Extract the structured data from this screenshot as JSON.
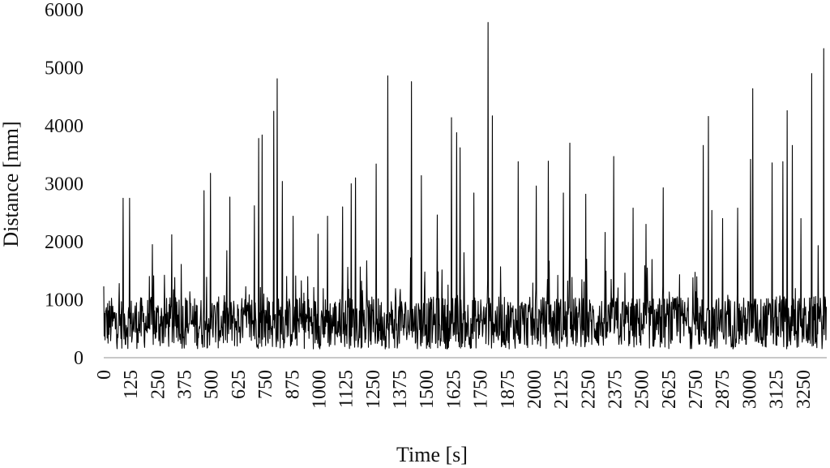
{
  "chart_data": {
    "type": "line",
    "title": "",
    "xlabel": "Time [s]",
    "ylabel": "Distance [mm]",
    "xlim": [
      0,
      3360
    ],
    "ylim": [
      0,
      6000
    ],
    "yticks": [
      0,
      1000,
      2000,
      3000,
      4000,
      5000,
      6000
    ],
    "xticks": [
      0,
      125,
      250,
      375,
      500,
      625,
      750,
      875,
      1000,
      1125,
      1250,
      1375,
      1500,
      1625,
      1750,
      1875,
      2000,
      2125,
      2250,
      2375,
      2500,
      2625,
      2750,
      2875,
      3000,
      3125,
      3250
    ],
    "grid": false,
    "legend": "none",
    "line_color": "#000000",
    "peaks": [
      {
        "x": 0,
        "y": 1230
      },
      {
        "x": 90,
        "y": 2750
      },
      {
        "x": 120,
        "y": 2750
      },
      {
        "x": 225,
        "y": 1950
      },
      {
        "x": 315,
        "y": 2120
      },
      {
        "x": 465,
        "y": 2880
      },
      {
        "x": 495,
        "y": 3180
      },
      {
        "x": 585,
        "y": 2770
      },
      {
        "x": 700,
        "y": 2620
      },
      {
        "x": 720,
        "y": 3780
      },
      {
        "x": 735,
        "y": 3840
      },
      {
        "x": 790,
        "y": 4250
      },
      {
        "x": 805,
        "y": 4810
      },
      {
        "x": 830,
        "y": 3040
      },
      {
        "x": 880,
        "y": 2440
      },
      {
        "x": 995,
        "y": 2130
      },
      {
        "x": 1040,
        "y": 2440
      },
      {
        "x": 1110,
        "y": 2600
      },
      {
        "x": 1150,
        "y": 3000
      },
      {
        "x": 1170,
        "y": 3100
      },
      {
        "x": 1265,
        "y": 3340
      },
      {
        "x": 1320,
        "y": 4860
      },
      {
        "x": 1430,
        "y": 4760
      },
      {
        "x": 1475,
        "y": 3140
      },
      {
        "x": 1550,
        "y": 2460
      },
      {
        "x": 1615,
        "y": 4140
      },
      {
        "x": 1640,
        "y": 3880
      },
      {
        "x": 1655,
        "y": 3620
      },
      {
        "x": 1720,
        "y": 2840
      },
      {
        "x": 1785,
        "y": 5780
      },
      {
        "x": 1805,
        "y": 4170
      },
      {
        "x": 1925,
        "y": 3380
      },
      {
        "x": 2010,
        "y": 2960
      },
      {
        "x": 2065,
        "y": 3390
      },
      {
        "x": 2135,
        "y": 2840
      },
      {
        "x": 2165,
        "y": 3700
      },
      {
        "x": 2240,
        "y": 2820
      },
      {
        "x": 2330,
        "y": 2160
      },
      {
        "x": 2370,
        "y": 3470
      },
      {
        "x": 2460,
        "y": 2580
      },
      {
        "x": 2520,
        "y": 2300
      },
      {
        "x": 2600,
        "y": 2930
      },
      {
        "x": 2785,
        "y": 3660
      },
      {
        "x": 2810,
        "y": 4160
      },
      {
        "x": 2825,
        "y": 2540
      },
      {
        "x": 2875,
        "y": 2400
      },
      {
        "x": 2945,
        "y": 2580
      },
      {
        "x": 3005,
        "y": 3420
      },
      {
        "x": 3015,
        "y": 4640
      },
      {
        "x": 3105,
        "y": 3360
      },
      {
        "x": 3155,
        "y": 3380
      },
      {
        "x": 3175,
        "y": 4260
      },
      {
        "x": 3200,
        "y": 3660
      },
      {
        "x": 3240,
        "y": 2400
      },
      {
        "x": 3290,
        "y": 4900
      },
      {
        "x": 3345,
        "y": 5330
      }
    ],
    "baseline_mean": 600,
    "baseline_spread": 450,
    "sample_count": 1680
  }
}
